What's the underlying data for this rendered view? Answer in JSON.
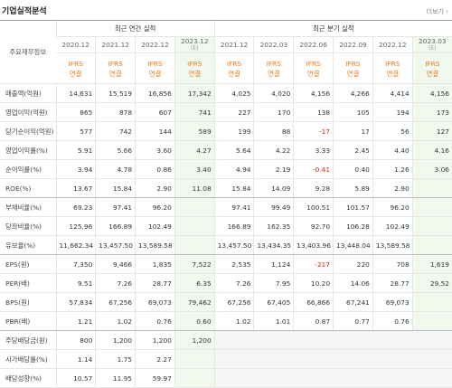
{
  "header": {
    "title": "기업실적분석",
    "more": "더보기 ›"
  },
  "table": {
    "label_header": "주요재무정보",
    "annual_header": "최근 연간 실적",
    "quarterly_header": "최근 분기 실적",
    "basis": [
      "IFRS",
      "연결"
    ],
    "annual_periods": [
      {
        "date": "2020.12",
        "note": null
      },
      {
        "date": "2021.12",
        "note": null
      },
      {
        "date": "2022.12",
        "note": null
      },
      {
        "date": "2023.12",
        "note": "(E)"
      }
    ],
    "quarterly_periods": [
      {
        "date": "2021.12",
        "note": null
      },
      {
        "date": "2022.03",
        "note": null
      },
      {
        "date": "2022.06",
        "note": null
      },
      {
        "date": "2022.09",
        "note": null
      },
      {
        "date": "2022.12",
        "note": null
      },
      {
        "date": "2023.03",
        "note": "(E)"
      }
    ],
    "rows": [
      {
        "label": "매출액(억원)",
        "annual": [
          "14,631",
          "15,519",
          "16,856",
          "17,342"
        ],
        "quarterly": [
          "4,025",
          "4,020",
          "4,156",
          "4,266",
          "4,414",
          "4,156"
        ]
      },
      {
        "label": "영업이익(억원)",
        "annual": [
          "865",
          "878",
          "607",
          "741"
        ],
        "quarterly": [
          "227",
          "170",
          "138",
          "105",
          "194",
          "173"
        ]
      },
      {
        "label": "당기순이익(억원)",
        "annual": [
          "577",
          "742",
          "144",
          "589"
        ],
        "quarterly": [
          "199",
          "88",
          "-17",
          "17",
          "56",
          "127"
        ]
      },
      {
        "label": "영업이익률(%)",
        "annual": [
          "5.91",
          "5.66",
          "3.60",
          "4.27"
        ],
        "quarterly": [
          "5.64",
          "4.22",
          "3.33",
          "2.45",
          "4.40",
          "4.16"
        ]
      },
      {
        "label": "순이익률(%)",
        "annual": [
          "3.94",
          "4.78",
          "0.86",
          "3.40"
        ],
        "quarterly": [
          "4.94",
          "2.19",
          "-0.41",
          "0.40",
          "1.26",
          "3.06"
        ]
      },
      {
        "label": "ROE(%)",
        "annual": [
          "13.67",
          "15.84",
          "2.90",
          "11.08"
        ],
        "quarterly": [
          "15.84",
          "14.09",
          "9.28",
          "5.89",
          "2.90",
          null
        ]
      },
      {
        "label": "부채비율(%)",
        "annual": [
          "69.23",
          "97.41",
          "96.20",
          null
        ],
        "quarterly": [
          "97.41",
          "99.49",
          "100.51",
          "101.57",
          "96.20",
          null
        ]
      },
      {
        "label": "당좌비율(%)",
        "annual": [
          "125.96",
          "166.89",
          "102.49",
          null
        ],
        "quarterly": [
          "166.89",
          "162.35",
          "92.70",
          "106.28",
          "102.49",
          null
        ]
      },
      {
        "label": "유보율(%)",
        "annual": [
          "11,662.34",
          "13,457.50",
          "13,589.58",
          null
        ],
        "quarterly": [
          "13,457.50",
          "13,434.35",
          "13,403.96",
          "13,448.04",
          "13,589.58",
          null
        ]
      },
      {
        "label": "EPS(원)",
        "annual": [
          "7,350",
          "9,466",
          "1,835",
          "7,522"
        ],
        "quarterly": [
          "2,535",
          "1,124",
          "-217",
          "220",
          "708",
          "1,619"
        ]
      },
      {
        "label": "PER(배)",
        "annual": [
          "9.51",
          "7.26",
          "28.77",
          "6.35"
        ],
        "quarterly": [
          "7.26",
          "7.95",
          "10.20",
          "14.06",
          "28.77",
          "29.52"
        ]
      },
      {
        "label": "BPS(원)",
        "annual": [
          "57,834",
          "67,256",
          "69,073",
          "79,462"
        ],
        "quarterly": [
          "67,256",
          "67,405",
          "66,866",
          "67,241",
          "69,073",
          null
        ]
      },
      {
        "label": "PBR(배)",
        "annual": [
          "1.21",
          "1.02",
          "0.76",
          "0.60"
        ],
        "quarterly": [
          "1.02",
          "1.01",
          "0.87",
          "0.77",
          "0.76",
          null
        ]
      },
      {
        "label": "주당배당금(원)",
        "annual": [
          "800",
          "1,200",
          "1,200",
          "1,200"
        ],
        "quarterly": null
      },
      {
        "label": "시가배당률(%)",
        "annual": [
          "1.14",
          "1.75",
          "2.27",
          null
        ],
        "quarterly": null
      },
      {
        "label": "배당성향(%)",
        "annual": [
          "10.57",
          "11.95",
          "59.97",
          null
        ],
        "quarterly": null
      }
    ]
  }
}
